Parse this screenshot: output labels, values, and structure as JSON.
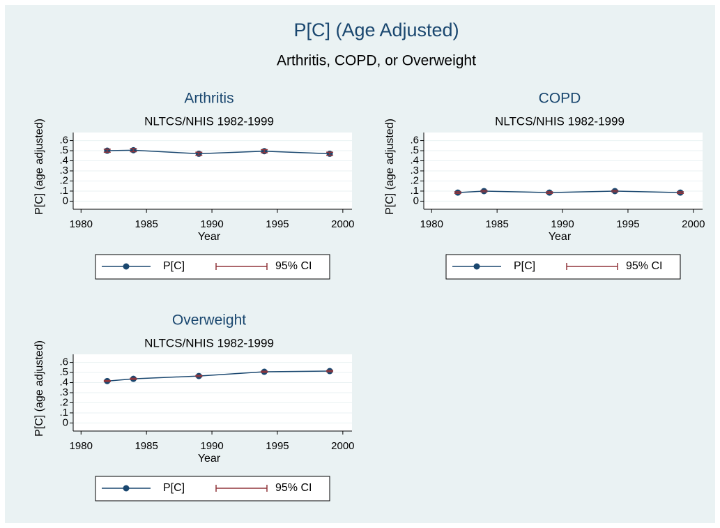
{
  "title": "P[C] (Age Adjusted)",
  "subtitle": "Arthritis, COPD, or Overweight",
  "chart_data": [
    {
      "type": "line",
      "title": "Arthritis",
      "subtitle": "NLTCS/NHIS 1982-1999",
      "x_label": "Year",
      "y_label": "P[C] (age adjusted)",
      "x": [
        1982,
        1984,
        1989,
        1994,
        1999
      ],
      "series": [
        {
          "name": "P[C]",
          "color": "#1a476f",
          "values": [
            0.5,
            0.505,
            0.47,
            0.495,
            0.47
          ]
        },
        {
          "name": "95% CI",
          "color": "#90353b",
          "lower": [
            0.485,
            0.49,
            0.455,
            0.48,
            0.455
          ],
          "upper": [
            0.515,
            0.52,
            0.485,
            0.51,
            0.485
          ]
        }
      ],
      "xlim": [
        1979.4,
        2000.7
      ],
      "xticks": [
        1980,
        1985,
        1990,
        1995,
        2000
      ],
      "ylim": [
        -0.08,
        0.68
      ],
      "yticks": [
        0,
        {
          "value": 0.1,
          "label": ".1"
        },
        {
          "value": 0.2,
          "label": ".2"
        },
        {
          "value": 0.3,
          "label": ".3"
        },
        {
          "value": 0.4,
          "label": ".4"
        },
        {
          "value": 0.5,
          "label": ".5"
        },
        {
          "value": 0.6,
          "label": ".6"
        }
      ],
      "grid": true,
      "legend": "bottom"
    },
    {
      "type": "line",
      "title": "COPD",
      "subtitle": "NLTCS/NHIS 1982-1999",
      "x_label": "Year",
      "y_label": "P[C] (age adjusted)",
      "x": [
        1982,
        1984,
        1989,
        1994,
        1999
      ],
      "series": [
        {
          "name": "P[C]",
          "color": "#1a476f",
          "values": [
            0.085,
            0.1,
            0.085,
            0.1,
            0.085
          ]
        },
        {
          "name": "95% CI",
          "color": "#90353b",
          "lower": [
            0.077,
            0.092,
            0.077,
            0.092,
            0.077
          ],
          "upper": [
            0.093,
            0.108,
            0.093,
            0.108,
            0.093
          ]
        }
      ],
      "xlim": [
        1979.4,
        2000.7
      ],
      "xticks": [
        1980,
        1985,
        1990,
        1995,
        2000
      ],
      "ylim": [
        -0.08,
        0.68
      ],
      "yticks": [
        0,
        {
          "value": 0.1,
          "label": ".1"
        },
        {
          "value": 0.2,
          "label": ".2"
        },
        {
          "value": 0.3,
          "label": ".3"
        },
        {
          "value": 0.4,
          "label": ".4"
        },
        {
          "value": 0.5,
          "label": ".5"
        },
        {
          "value": 0.6,
          "label": ".6"
        }
      ],
      "grid": true,
      "legend": "bottom"
    },
    {
      "type": "line",
      "title": "Overweight",
      "subtitle": "NLTCS/NHIS 1982-1999",
      "x_label": "Year",
      "y_label": "P[C] (age adjusted)",
      "x": [
        1982,
        1984,
        1989,
        1994,
        1999
      ],
      "series": [
        {
          "name": "P[C]",
          "color": "#1a476f",
          "values": [
            0.415,
            0.437,
            0.465,
            0.507,
            0.514
          ]
        },
        {
          "name": "95% CI",
          "color": "#90353b",
          "lower": [
            0.409,
            0.431,
            0.459,
            0.501,
            0.508
          ],
          "upper": [
            0.421,
            0.443,
            0.471,
            0.513,
            0.52
          ]
        }
      ],
      "xlim": [
        1979.4,
        2000.7
      ],
      "xticks": [
        1980,
        1985,
        1990,
        1995,
        2000
      ],
      "ylim": [
        -0.08,
        0.68
      ],
      "yticks": [
        0,
        {
          "value": 0.1,
          "label": ".1"
        },
        {
          "value": 0.2,
          "label": ".2"
        },
        {
          "value": 0.3,
          "label": ".3"
        },
        {
          "value": 0.4,
          "label": ".4"
        },
        {
          "value": 0.5,
          "label": ".5"
        },
        {
          "value": 0.6,
          "label": ".6"
        }
      ],
      "grid": true,
      "legend": "bottom"
    }
  ]
}
